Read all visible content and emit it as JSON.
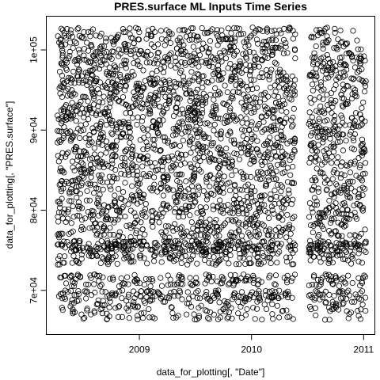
{
  "chart_data": {
    "type": "scatter",
    "title": "PRES.surface ML Inputs Time Series",
    "xlabel": "data_for_plotting[, \"Date\"]",
    "ylabel": "data_for_plotting[, \"PRES.surface\"]",
    "x_ticks": [
      {
        "value": 2009.0,
        "label": "2009"
      },
      {
        "value": 2010.0,
        "label": "2010"
      },
      {
        "value": 2011.0,
        "label": "2011"
      }
    ],
    "y_ticks": [
      {
        "value": 70000,
        "label": "7e+04"
      },
      {
        "value": 80000,
        "label": "8e+04"
      },
      {
        "value": 90000,
        "label": "9e+04"
      },
      {
        "value": 100000,
        "label": "1e+05"
      }
    ],
    "xlim": [
      2008.17,
      2011.1
    ],
    "ylim": [
      64500,
      104200
    ],
    "grid": false,
    "legend": "none",
    "marker": "open-circle",
    "color": "#000000",
    "data_gap": [
      2010.4,
      2010.5
    ],
    "series": [
      {
        "segments": [
          [
            2008.27,
            2010.39
          ],
          [
            2010.51,
            2011.02
          ]
        ],
        "bands": [
          {
            "y_min": 76600,
            "y_max": 102800,
            "density": "dense"
          },
          {
            "y_min": 74800,
            "y_max": 76200,
            "density": "medium"
          },
          {
            "y_min": 73200,
            "y_max": 74800,
            "density": "sparse"
          },
          {
            "y_min": 70500,
            "y_max": 72000,
            "density": "sparse"
          },
          {
            "y_min": 68800,
            "y_max": 70000,
            "density": "sparse"
          },
          {
            "y_min": 66300,
            "y_max": 68800,
            "density": "sparse"
          }
        ]
      }
    ]
  }
}
